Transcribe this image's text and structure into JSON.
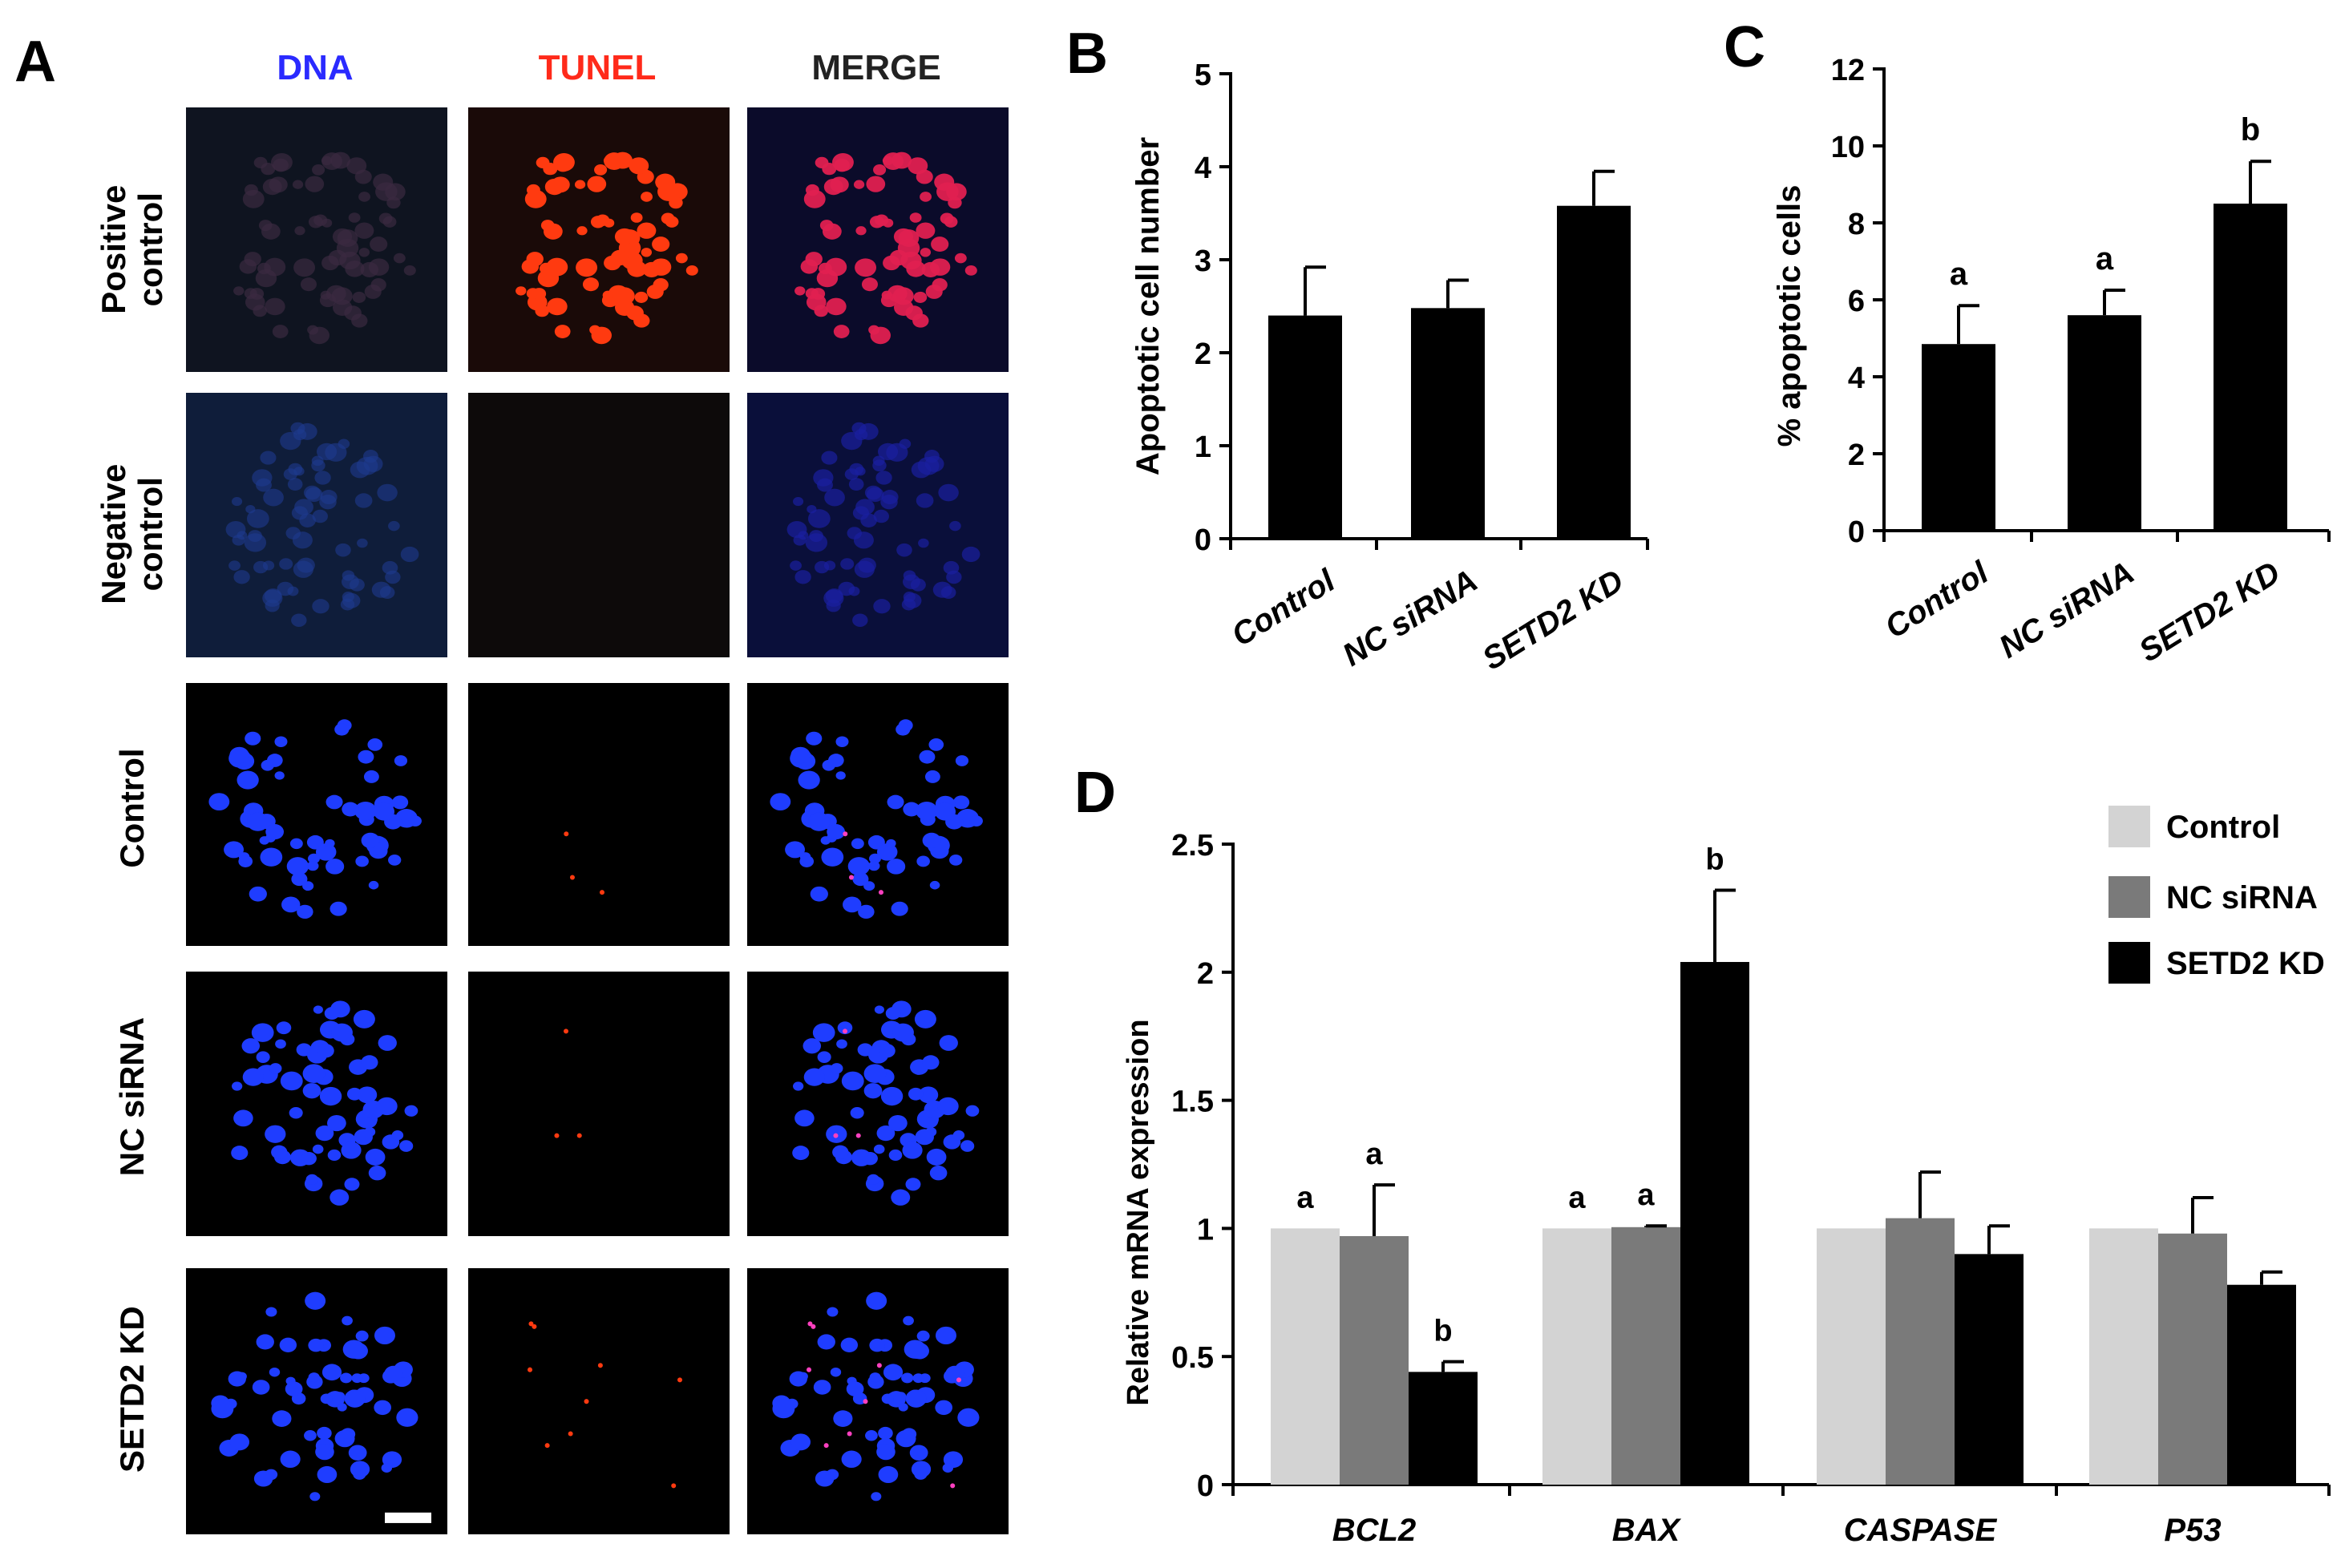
{
  "panel_a": {
    "letter": "A",
    "columns": [
      {
        "label": "DNA",
        "color": "#2a2aff"
      },
      {
        "label": "TUNEL",
        "color": "#ff2a1a"
      },
      {
        "label": "MERGE",
        "color": "#222222"
      }
    ],
    "rows": [
      "Positive\ncontrol",
      "Negative\ncontrol",
      "Control",
      "NC siRNA",
      "SETD2 KD"
    ]
  },
  "panel_b": {
    "letter": "B"
  },
  "panel_c": {
    "letter": "C"
  },
  "panel_d": {
    "letter": "D"
  },
  "chart_data": [
    {
      "id": "B",
      "type": "bar",
      "categories": [
        "Control",
        "NC siRNA",
        "SETD2 KD"
      ],
      "values": [
        2.4,
        2.48,
        3.58
      ],
      "errors": [
        0.52,
        0.3,
        0.37
      ],
      "ylabel": "Apoptotic cell number",
      "ylim": [
        0,
        5
      ],
      "yticks": [
        0,
        1,
        2,
        3,
        4,
        5
      ],
      "bar_color": "#000000"
    },
    {
      "id": "C",
      "type": "bar",
      "categories": [
        "Control",
        "NC siRNA",
        "SETD2 KD"
      ],
      "values": [
        4.85,
        5.6,
        8.5
      ],
      "errors": [
        1.0,
        0.65,
        1.1
      ],
      "annotations": [
        "a",
        "a",
        "b"
      ],
      "ylabel": "% apoptotic cells",
      "ylim": [
        0,
        12
      ],
      "yticks": [
        0,
        2,
        4,
        6,
        8,
        10,
        12
      ],
      "bar_color": "#000000"
    },
    {
      "id": "D",
      "type": "bar",
      "categories": [
        "BCL2",
        "BAX",
        "CASPASE",
        "P53"
      ],
      "series": [
        {
          "name": "Control",
          "color": "#d3d3d3",
          "values": [
            1.0,
            1.0,
            1.0,
            1.0
          ],
          "errors": [
            0,
            0,
            0,
            0
          ],
          "annotations": [
            "a",
            "a",
            "",
            ""
          ]
        },
        {
          "name": "NC siRNA",
          "color": "#7a7a7a",
          "values": [
            0.97,
            1.005,
            1.04,
            0.98
          ],
          "errors": [
            0.2,
            0.005,
            0.18,
            0.14
          ],
          "annotations": [
            "a",
            "a",
            "",
            ""
          ]
        },
        {
          "name": "SETD2 KD",
          "color": "#000000",
          "values": [
            0.44,
            2.04,
            0.9,
            0.78
          ],
          "errors": [
            0.04,
            0.28,
            0.11,
            0.05
          ],
          "annotations": [
            "b",
            "b",
            "",
            ""
          ]
        }
      ],
      "ylabel": "Relative mRNA expression",
      "ylim": [
        0,
        2.5
      ],
      "yticks": [
        "0",
        "0.5",
        "1",
        "1.5",
        "2",
        "2.5"
      ],
      "legend_position": "top-right"
    }
  ]
}
